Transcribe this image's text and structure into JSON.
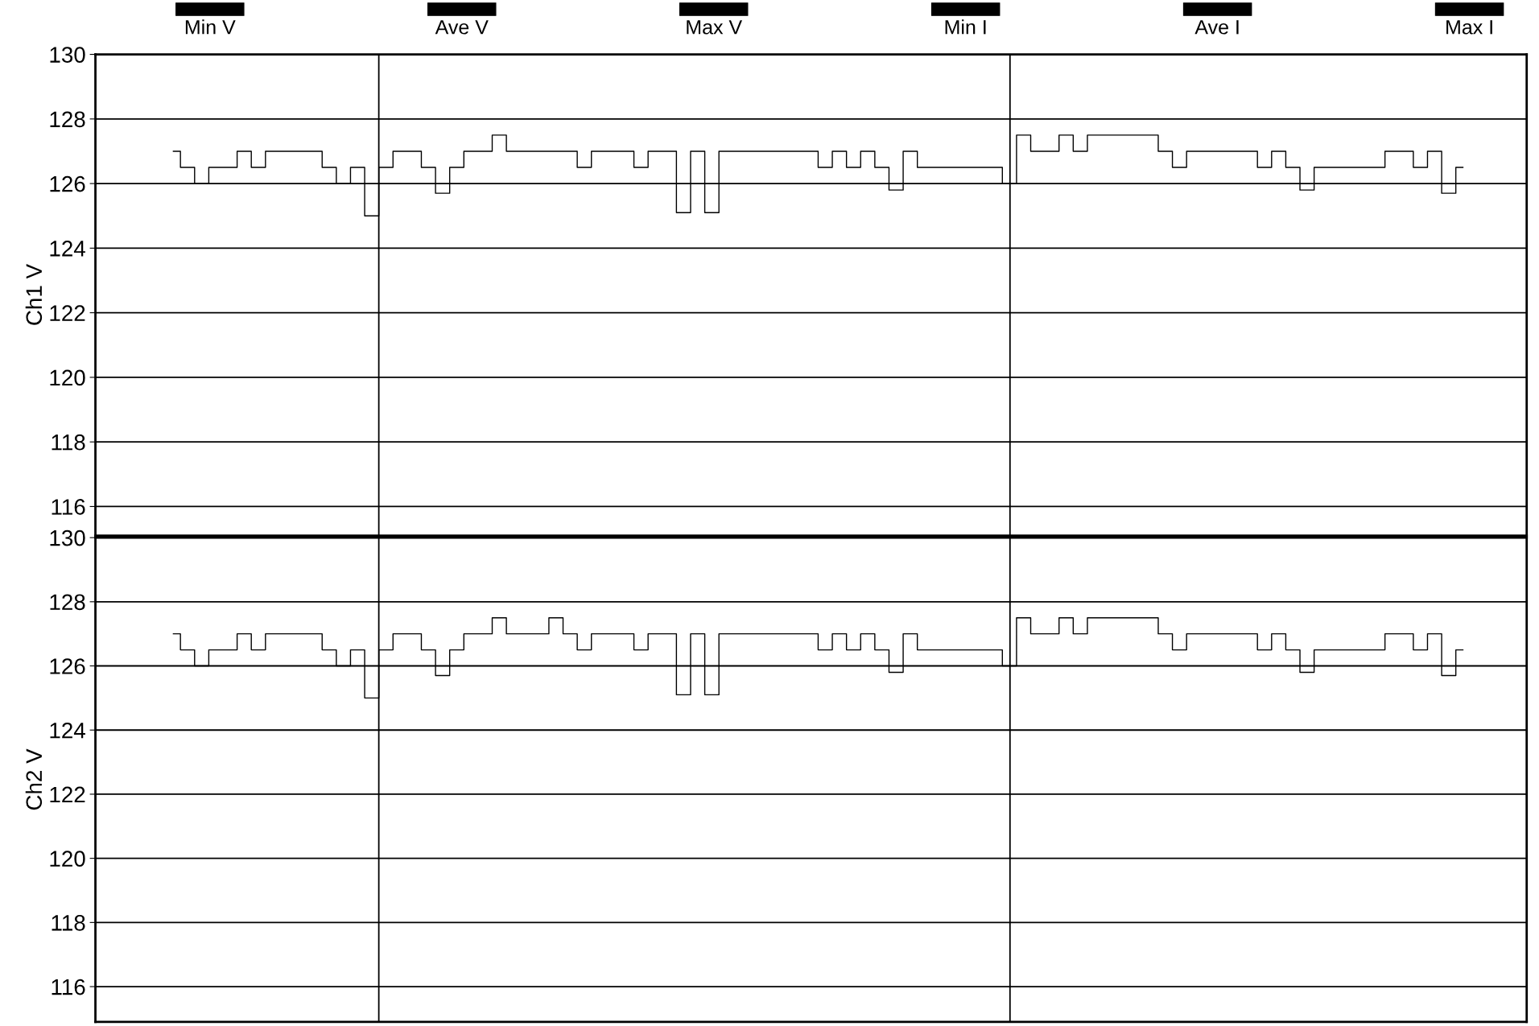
{
  "chart_data": [
    {
      "type": "step",
      "ylabel": "Ch1 V",
      "annotations": [
        "Min V",
        "Ave V",
        "Max V",
        "Min I",
        "Ave I",
        "Max I"
      ],
      "ylim": [
        115.1,
        130
      ],
      "yticks": [
        116,
        118,
        120,
        122,
        124,
        126,
        128,
        130
      ],
      "grid": "y",
      "tick_labels": "y",
      "categories": [
        null,
        null,
        null,
        null,
        null,
        null,
        null,
        null,
        null,
        null,
        null,
        null,
        null,
        null,
        null,
        null,
        null,
        null,
        null,
        null,
        null,
        null,
        null,
        null,
        null,
        null,
        null,
        null,
        null,
        null,
        null,
        null,
        null,
        null,
        null,
        null,
        null,
        null,
        null,
        null,
        null,
        null,
        null,
        null,
        null,
        null,
        null,
        null,
        null,
        null,
        null,
        null,
        null,
        null,
        null,
        null,
        null,
        null,
        null,
        null,
        null,
        null,
        null,
        null,
        null,
        null,
        null,
        null,
        null,
        null,
        null,
        null,
        null,
        null,
        null,
        null,
        null,
        null,
        null,
        null,
        null,
        null,
        null,
        null,
        null,
        null,
        null,
        null,
        null,
        null,
        null,
        null
      ],
      "series": [
        {
          "color": "#000000",
          "values": [
            127,
            126.5,
            126.0,
            126.5,
            126.5,
            127,
            126.5,
            127,
            127,
            127,
            127,
            126.5,
            126.0,
            126.5,
            125.0,
            126.5,
            127,
            127,
            126.5,
            125.7,
            126.5,
            127,
            127,
            127.5,
            127,
            127,
            127,
            127,
            127,
            126.5,
            127,
            127,
            127,
            126.5,
            127,
            127,
            125.1,
            127,
            125.1,
            127,
            127,
            127,
            127,
            127,
            127,
            127,
            126.5,
            127,
            126.5,
            127,
            126.5,
            125.8,
            127,
            126.5,
            126.5,
            126.5,
            126.5,
            126.5,
            126.5,
            126.0,
            127.5,
            127,
            127,
            127.5,
            127,
            127.5,
            127.5,
            127.5,
            127.5,
            127.5,
            127,
            126.5,
            127,
            127,
            127,
            127,
            127,
            126.5,
            127,
            126.5,
            125.8,
            126.5,
            126.5,
            126.5,
            126.5,
            126.5,
            127,
            127,
            126.5,
            127,
            125.7,
            126.5
          ]
        }
      ]
    },
    {
      "type": "step",
      "ylabel": "Ch2 V",
      "ylim": [
        114.9,
        130
      ],
      "yticks": [
        116,
        118,
        120,
        122,
        124,
        126,
        128,
        130
      ],
      "grid": "y",
      "tick_labels": "y",
      "categories": [
        null,
        null,
        null,
        null,
        null,
        null,
        null,
        null,
        null,
        null,
        null,
        null,
        null,
        null,
        null,
        null,
        null,
        null,
        null,
        null,
        null,
        null,
        null,
        null,
        null,
        null,
        null,
        null,
        null,
        null,
        null,
        null,
        null,
        null,
        null,
        null,
        null,
        null,
        null,
        null,
        null,
        null,
        null,
        null,
        null,
        null,
        null,
        null,
        null,
        null,
        null,
        null,
        null,
        null,
        null,
        null,
        null,
        null,
        null,
        null,
        null,
        null,
        null,
        null,
        null,
        null,
        null,
        null,
        null,
        null,
        null,
        null,
        null,
        null,
        null,
        null,
        null,
        null,
        null,
        null,
        null,
        null,
        null,
        null,
        null,
        null,
        null,
        null,
        null,
        null,
        null,
        null
      ],
      "series": [
        {
          "color": "#000000",
          "values": [
            127,
            126.5,
            126.0,
            126.5,
            126.5,
            127,
            126.5,
            127,
            127,
            127,
            127,
            126.5,
            126.0,
            126.5,
            125.0,
            126.5,
            127,
            127,
            126.5,
            125.7,
            126.5,
            127,
            127,
            127.5,
            127,
            127,
            127,
            127.5,
            127,
            126.5,
            127,
            127,
            127,
            126.5,
            127,
            127,
            125.1,
            127,
            125.1,
            127,
            127,
            127,
            127,
            127,
            127,
            127,
            126.5,
            127,
            126.5,
            127,
            126.5,
            125.8,
            127,
            126.5,
            126.5,
            126.5,
            126.5,
            126.5,
            126.5,
            126.0,
            127.5,
            127,
            127,
            127.5,
            127,
            127.5,
            127.5,
            127.5,
            127.5,
            127.5,
            127,
            126.5,
            127,
            127,
            127,
            127,
            127,
            126.5,
            127,
            126.5,
            125.8,
            126.5,
            126.5,
            126.5,
            126.5,
            126.5,
            127,
            127,
            126.5,
            127,
            125.7,
            126.5
          ]
        }
      ]
    }
  ]
}
